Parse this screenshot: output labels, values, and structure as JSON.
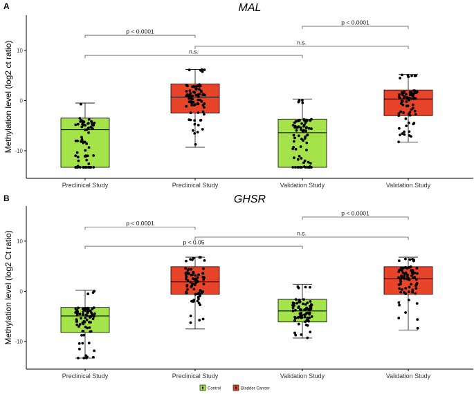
{
  "colors": {
    "control": "#a4e34a",
    "cancer": "#e8442a",
    "point": "#000000",
    "axis": "#000000",
    "bracket": "#555555"
  },
  "legend": {
    "entries": [
      {
        "label": "Control",
        "group": "control"
      },
      {
        "label": "Bladder Cancer",
        "group": "cancer"
      }
    ]
  },
  "chart_data": [
    {
      "type": "box",
      "panel": "A",
      "title": "MAL",
      "ylabel": "Methylation level (log2 ct ratio)",
      "ylim": [
        -15.5,
        17
      ],
      "yticks": [
        -10,
        0,
        10
      ],
      "categories": [
        "Preclinical Study",
        "Preclinical Study",
        "Validation Study",
        "Validation Study"
      ],
      "boxes": [
        {
          "group": "control",
          "min": -13.3,
          "q1": -13.3,
          "median": -5.8,
          "q3": -3.5,
          "max": -0.5
        },
        {
          "group": "cancer",
          "min": -9.3,
          "q1": -2.5,
          "median": 0.7,
          "q3": 3.3,
          "max": 6.2
        },
        {
          "group": "control",
          "min": -13.3,
          "q1": -13.3,
          "median": -6.4,
          "q3": -3.7,
          "max": 0.3
        },
        {
          "group": "cancer",
          "min": -8.3,
          "q1": -3.0,
          "median": 0.3,
          "q3": 2.1,
          "max": 5.2
        }
      ],
      "comparisons": [
        {
          "from": 1,
          "to": 2,
          "label": "p < 0.0001",
          "y": 13
        },
        {
          "from": 1,
          "to": 3,
          "label": "n.s.",
          "y": 9
        },
        {
          "from": 2,
          "to": 4,
          "label": "n.s.",
          "y": 10.8
        },
        {
          "from": 3,
          "to": 4,
          "label": "p < 0.0001",
          "y": 14.8
        }
      ]
    },
    {
      "type": "box",
      "panel": "B",
      "title": "GHSR",
      "ylabel": "Methylation level (log2 Ct ratio)",
      "ylim": [
        -15.5,
        17
      ],
      "yticks": [
        -10,
        0,
        10
      ],
      "categories": [
        "Preclinical Study",
        "Preclinical Study",
        "Validation Study",
        "Validation Study"
      ],
      "boxes": [
        {
          "group": "control",
          "min": -13.3,
          "q1": -8.2,
          "median": -4.9,
          "q3": -3.2,
          "max": 0.2
        },
        {
          "group": "cancer",
          "min": -7.5,
          "q1": -0.6,
          "median": 1.9,
          "q3": 4.9,
          "max": 6.8
        },
        {
          "group": "control",
          "min": -9.3,
          "q1": -6.1,
          "median": -3.9,
          "q3": -1.6,
          "max": 1.4
        },
        {
          "group": "cancer",
          "min": -7.7,
          "q1": -0.6,
          "median": 2.5,
          "q3": 4.9,
          "max": 6.8
        }
      ],
      "comparisons": [
        {
          "from": 1,
          "to": 2,
          "label": "p < 0.0001",
          "y": 12.8
        },
        {
          "from": 1,
          "to": 3,
          "label": "p < 0.05",
          "y": 9
        },
        {
          "from": 2,
          "to": 4,
          "label": "n.s.",
          "y": 10.8
        },
        {
          "from": 3,
          "to": 4,
          "label": "p < 0.0001",
          "y": 14.8
        }
      ]
    }
  ]
}
